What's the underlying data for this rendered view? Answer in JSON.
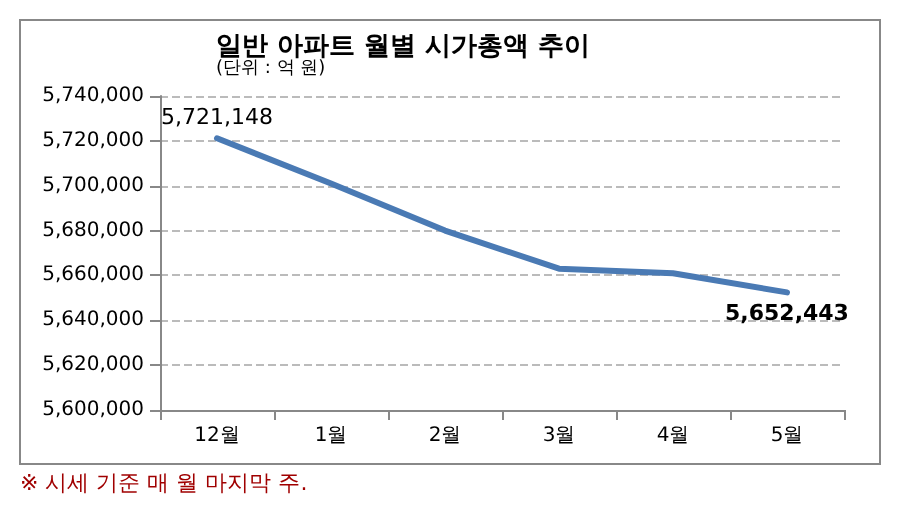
{
  "chart_data": {
    "type": "line",
    "title": "일반 아파트 월별 시가총액 추이",
    "subtitle": "(단위 : 억 원)",
    "categories": [
      "12월",
      "1월",
      "2월",
      "3월",
      "4월",
      "5월"
    ],
    "series": [
      {
        "color": "#4a7ab4",
        "values": [
          5721148,
          5701000,
          5680000,
          5663000,
          5661000,
          5652443
        ],
        "value_labels": [
          "5,721,148",
          null,
          null,
          null,
          null,
          "5,652,443"
        ]
      }
    ],
    "ylim": [
      5600000,
      5740000
    ],
    "yticks": [
      {
        "value": 5600000,
        "label": "5,600,000"
      },
      {
        "value": 5620000,
        "label": "5,620,000"
      },
      {
        "value": 5640000,
        "label": "5,640,000"
      },
      {
        "value": 5660000,
        "label": "5,660,000"
      },
      {
        "value": 5680000,
        "label": "5,680,000"
      },
      {
        "value": 5700000,
        "label": "5,700,000"
      },
      {
        "value": 5720000,
        "label": "5,720,000"
      },
      {
        "value": 5740000,
        "label": "5,740,000"
      }
    ],
    "grid": "y",
    "marker": "none",
    "line_style": "solid",
    "annotations": [
      "※ 시세 기준 매 월 마지막 주."
    ]
  }
}
